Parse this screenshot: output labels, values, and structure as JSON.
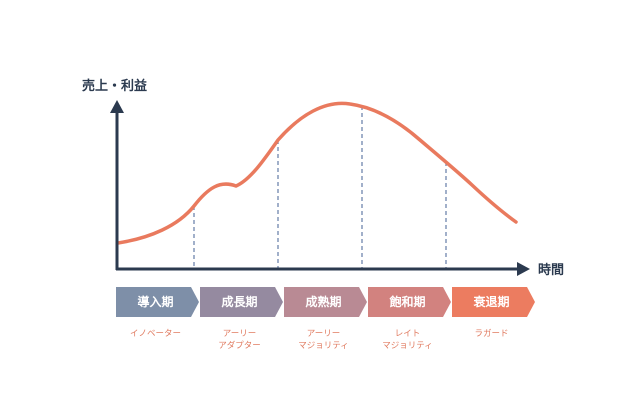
{
  "axes": {
    "y_label": "売上・利益",
    "x_label": "時間"
  },
  "stages": [
    {
      "label": "導入期",
      "color": "#7e8fa8",
      "adopter": [
        "イノベーター"
      ]
    },
    {
      "label": "成長期",
      "color": "#958aa0",
      "adopter": [
        "アーリー",
        "アダプター"
      ]
    },
    {
      "label": "成熟期",
      "color": "#b98a94",
      "adopter": [
        "アーリー",
        "マジョリティ"
      ]
    },
    {
      "label": "飽和期",
      "color": "#d2827f",
      "adopter": [
        "レイト",
        "マジョリティ"
      ]
    },
    {
      "label": "衰退期",
      "color": "#ec7c60",
      "adopter": [
        "ラガード"
      ]
    }
  ],
  "colors": {
    "axis": "#2b3a4f",
    "curve": "#e97a5e",
    "divider": "#6f86ad",
    "adopter_text": "#e07a5f"
  }
}
